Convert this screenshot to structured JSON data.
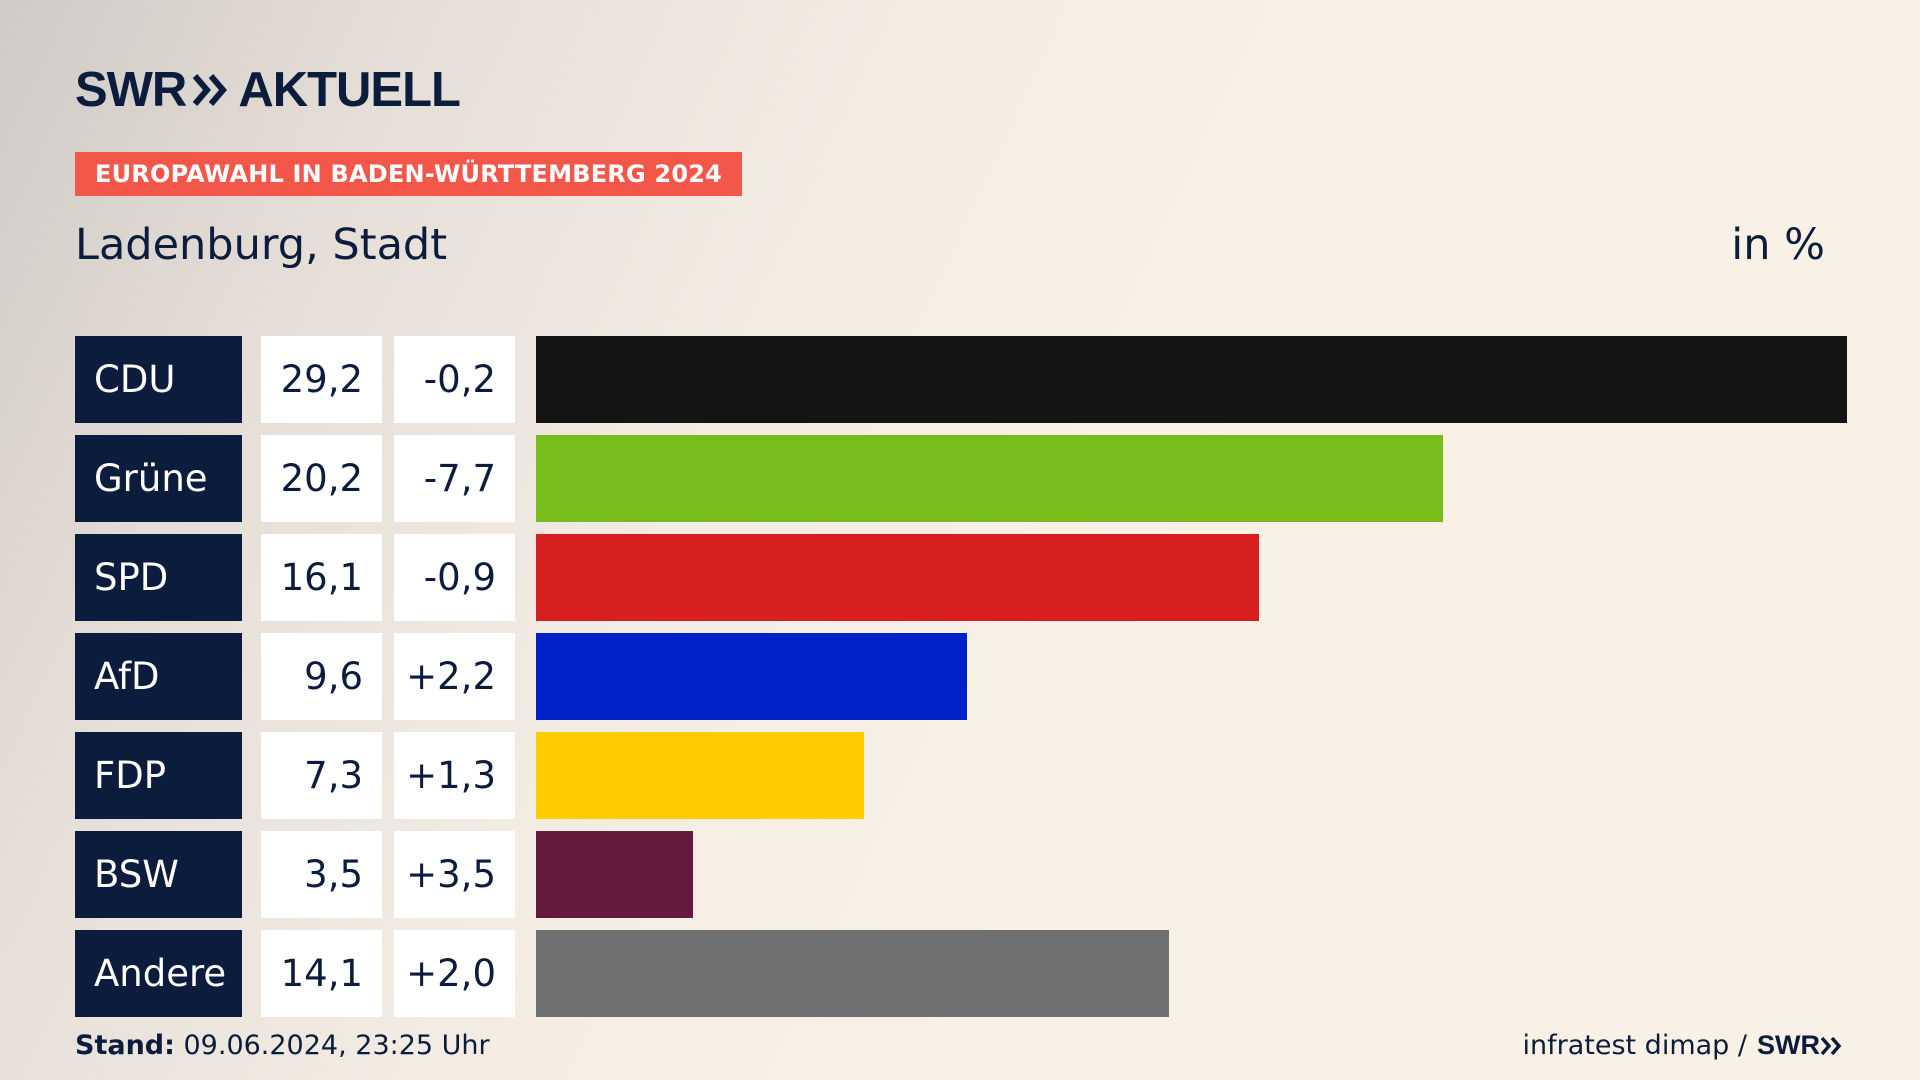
{
  "brand": {
    "name": "SWR",
    "section": "AKTUELL"
  },
  "badge": "EUROPAWAHL IN BADEN-WÜRTTEMBERG 2024",
  "subtitle": "Ladenburg, Stadt",
  "unit": "in %",
  "chart_data": {
    "type": "bar",
    "orientation": "horizontal",
    "title": "Ladenburg, Stadt",
    "unit": "in %",
    "categories": [
      "CDU",
      "Grüne",
      "SPD",
      "AfD",
      "FDP",
      "BSW",
      "Andere"
    ],
    "values": [
      29.2,
      20.2,
      16.1,
      9.6,
      7.3,
      3.5,
      14.1
    ],
    "value_labels": [
      "29,2",
      "20,2",
      "16,1",
      "9,6",
      "7,3",
      "3,5",
      "14,1"
    ],
    "diff_labels": [
      "-0,2",
      "-7,7",
      "-0,9",
      "+2,2",
      "+1,3",
      "+3,5",
      "+2,0"
    ],
    "diffs": [
      -0.2,
      -7.7,
      -0.9,
      2.2,
      1.3,
      3.5,
      2.0
    ],
    "colors": [
      "#141414",
      "#78bc1b",
      "#d71f1f",
      "#0020c8",
      "#ffcc00",
      "#661a3c",
      "#6f7072"
    ],
    "xlim": [
      0,
      29.2
    ],
    "grid": false
  },
  "footer": {
    "stand_label": "Stand:",
    "stand_value": " 09.06.2024, 23:25 Uhr",
    "source": "infratest dimap /",
    "source_brand": "SWR"
  },
  "theme": {
    "navy": "#0c1c3c",
    "accent": "#f2574a"
  }
}
